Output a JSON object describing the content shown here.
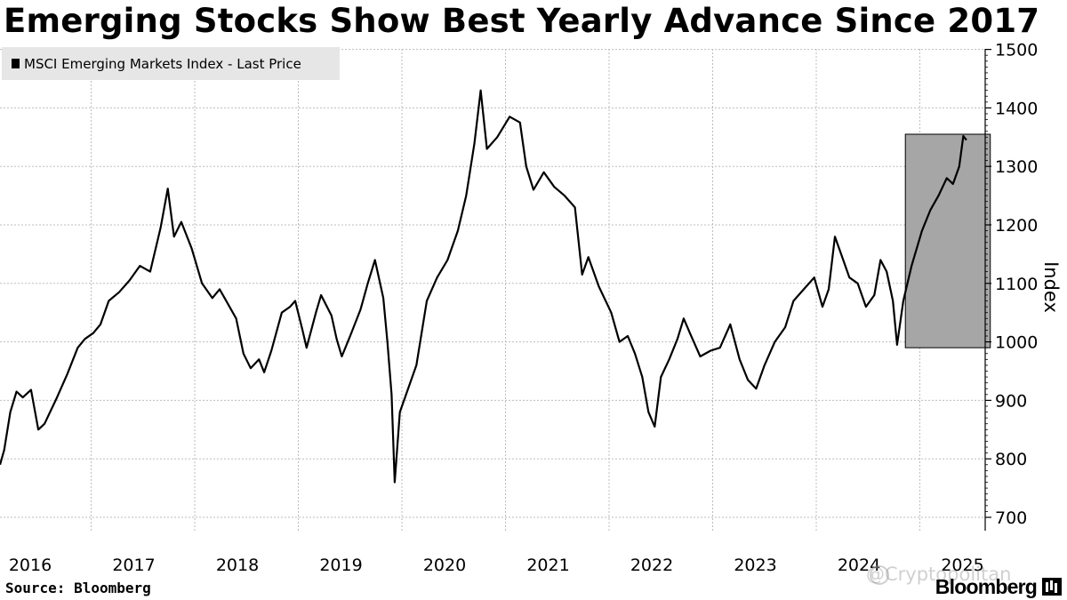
{
  "title": "Emerging Stocks Show Best Yearly Advance Since 2017",
  "source": "Source: Bloomberg",
  "brand": "Bloomberg",
  "watermark": "@Cryptopolitan",
  "chart_data": {
    "type": "line",
    "title": "Emerging Stocks Show Best Yearly Advance Since 2017",
    "ylabel": "Index",
    "ylim": [
      690,
      1510
    ],
    "yticks": [
      700,
      800,
      900,
      1000,
      1100,
      1200,
      1300,
      1400,
      1500
    ],
    "y_axis_side": "right",
    "x_tick_labels": [
      "2016",
      "2017",
      "2018",
      "2019",
      "2020",
      "2021",
      "2022",
      "2023",
      "2024",
      "2025"
    ],
    "grid": true,
    "legend": "top-left",
    "line_color": "#000000",
    "highlight": {
      "from": 2024.74,
      "to": 2025.56,
      "y_from": 990,
      "y_to": 1355,
      "color": "#a6a6a6"
    },
    "series": [
      {
        "name": "MSCI Emerging Markets Index - Last Price",
        "points": [
          [
            2016.0,
            790
          ],
          [
            2016.04,
            815
          ],
          [
            2016.1,
            880
          ],
          [
            2016.16,
            915
          ],
          [
            2016.22,
            905
          ],
          [
            2016.3,
            918
          ],
          [
            2016.37,
            850
          ],
          [
            2016.43,
            860
          ],
          [
            2016.55,
            905
          ],
          [
            2016.65,
            945
          ],
          [
            2016.75,
            990
          ],
          [
            2016.82,
            1005
          ],
          [
            2016.9,
            1015
          ],
          [
            2016.97,
            1030
          ],
          [
            2017.05,
            1070
          ],
          [
            2017.15,
            1085
          ],
          [
            2017.25,
            1105
          ],
          [
            2017.35,
            1130
          ],
          [
            2017.45,
            1120
          ],
          [
            2017.55,
            1195
          ],
          [
            2017.62,
            1262
          ],
          [
            2017.68,
            1180
          ],
          [
            2017.75,
            1205
          ],
          [
            2017.85,
            1160
          ],
          [
            2017.95,
            1100
          ],
          [
            2018.05,
            1075
          ],
          [
            2018.12,
            1090
          ],
          [
            2018.2,
            1065
          ],
          [
            2018.28,
            1040
          ],
          [
            2018.35,
            980
          ],
          [
            2018.42,
            955
          ],
          [
            2018.5,
            970
          ],
          [
            2018.55,
            948
          ],
          [
            2018.62,
            985
          ],
          [
            2018.72,
            1050
          ],
          [
            2018.8,
            1060
          ],
          [
            2018.85,
            1070
          ],
          [
            2018.92,
            1020
          ],
          [
            2018.96,
            990
          ],
          [
            2019.05,
            1050
          ],
          [
            2019.1,
            1080
          ],
          [
            2019.2,
            1045
          ],
          [
            2019.25,
            1005
          ],
          [
            2019.3,
            975
          ],
          [
            2019.38,
            1010
          ],
          [
            2019.48,
            1055
          ],
          [
            2019.55,
            1100
          ],
          [
            2019.62,
            1140
          ],
          [
            2019.7,
            1075
          ],
          [
            2019.74,
            1000
          ],
          [
            2019.78,
            910
          ],
          [
            2019.81,
            760
          ],
          [
            2019.86,
            880
          ],
          [
            2019.94,
            920
          ],
          [
            2020.02,
            960
          ],
          [
            2020.12,
            1070
          ],
          [
            2020.22,
            1110
          ],
          [
            2020.32,
            1140
          ],
          [
            2020.42,
            1190
          ],
          [
            2020.5,
            1250
          ],
          [
            2020.58,
            1340
          ],
          [
            2020.64,
            1430
          ],
          [
            2020.7,
            1330
          ],
          [
            2020.8,
            1350
          ],
          [
            2020.92,
            1385
          ],
          [
            2021.02,
            1375
          ],
          [
            2021.08,
            1300
          ],
          [
            2021.15,
            1260
          ],
          [
            2021.25,
            1290
          ],
          [
            2021.35,
            1265
          ],
          [
            2021.45,
            1250
          ],
          [
            2021.55,
            1230
          ],
          [
            2021.62,
            1115
          ],
          [
            2021.68,
            1145
          ],
          [
            2021.78,
            1095
          ],
          [
            2021.9,
            1050
          ],
          [
            2021.98,
            1000
          ],
          [
            2022.06,
            1010
          ],
          [
            2022.13,
            980
          ],
          [
            2022.2,
            940
          ],
          [
            2022.26,
            880
          ],
          [
            2022.32,
            855
          ],
          [
            2022.38,
            940
          ],
          [
            2022.46,
            970
          ],
          [
            2022.54,
            1005
          ],
          [
            2022.6,
            1040
          ],
          [
            2022.66,
            1015
          ],
          [
            2022.76,
            975
          ],
          [
            2022.86,
            985
          ],
          [
            2022.95,
            990
          ],
          [
            2023.05,
            1030
          ],
          [
            2023.14,
            970
          ],
          [
            2023.22,
            935
          ],
          [
            2023.3,
            920
          ],
          [
            2023.38,
            960
          ],
          [
            2023.48,
            1000
          ],
          [
            2023.58,
            1025
          ],
          [
            2023.66,
            1070
          ],
          [
            2023.76,
            1090
          ],
          [
            2023.86,
            1110
          ],
          [
            2023.94,
            1060
          ],
          [
            2024.0,
            1090
          ],
          [
            2024.06,
            1180
          ],
          [
            2024.12,
            1150
          ],
          [
            2024.2,
            1110
          ],
          [
            2024.28,
            1100
          ],
          [
            2024.36,
            1060
          ],
          [
            2024.44,
            1080
          ],
          [
            2024.5,
            1140
          ],
          [
            2024.56,
            1120
          ],
          [
            2024.62,
            1070
          ],
          [
            2024.66,
            995
          ],
          [
            2024.72,
            1070
          ],
          [
            2024.8,
            1130
          ],
          [
            2024.9,
            1190
          ],
          [
            2024.98,
            1225
          ],
          [
            2025.06,
            1250
          ],
          [
            2025.14,
            1280
          ],
          [
            2025.2,
            1270
          ],
          [
            2025.26,
            1300
          ],
          [
            2025.3,
            1352
          ],
          [
            2025.33,
            1345
          ]
        ]
      }
    ]
  }
}
